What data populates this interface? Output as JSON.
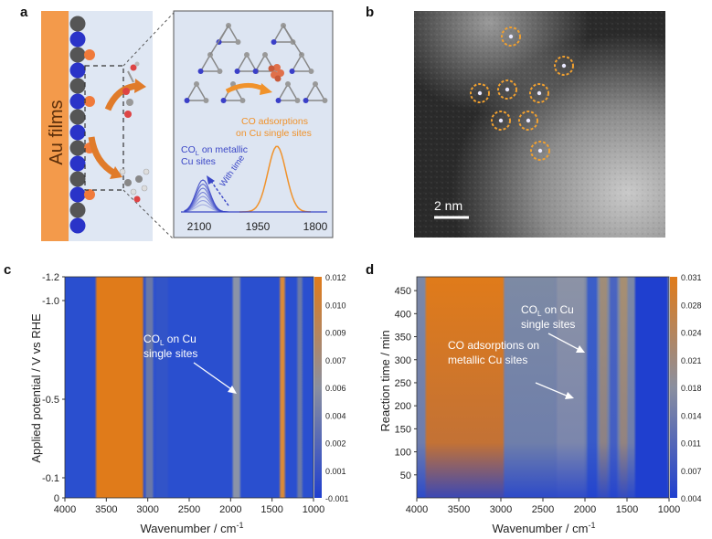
{
  "panel_a": {
    "letter": "a",
    "film_label": "Au films",
    "spectrum": {
      "co_l_label_line1": "CO",
      "co_l_sub": "L",
      "co_l_label_rest": " on metallic",
      "co_l_label_line2": "Cu sites",
      "with_time": "With time",
      "co_ads_line1": "CO adsorptions",
      "co_ads_line2": "on Cu single sites",
      "x_ticks": [
        "2100",
        "1950",
        "1800"
      ]
    }
  },
  "panel_b": {
    "letter": "b",
    "scale_bar": "2 nm"
  },
  "panel_c": {
    "letter": "c",
    "ylabel": "Applied potential / V vs RHE",
    "xlabel_main": "Wavenumber / cm",
    "xlabel_sup": "-1",
    "y_ticks": [
      "-1.2",
      "-1.0",
      "-0.5",
      "-0.1",
      "0"
    ],
    "x_ticks": [
      "4000",
      "3500",
      "3000",
      "2500",
      "2000",
      "1500",
      "1000"
    ],
    "colorbar_ticks": [
      "0.012",
      "0.010",
      "0.009",
      "0.007",
      "0.006",
      "0.004",
      "0.002",
      "0.001",
      "-0.001"
    ],
    "annotation_co": "CO",
    "annotation_sub": "L",
    "annotation_rest": " on Cu",
    "annotation_line2": "single sites"
  },
  "panel_d": {
    "letter": "d",
    "ylabel": "Reaction time / min",
    "xlabel_main": "Wavenumber / cm",
    "xlabel_sup": "-1",
    "y_ticks": [
      "450",
      "400",
      "350",
      "300",
      "250",
      "200",
      "150",
      "100",
      "50"
    ],
    "x_ticks": [
      "4000",
      "3500",
      "3000",
      "2500",
      "2000",
      "1500",
      "1000"
    ],
    "colorbar_ticks": [
      "0.031",
      "0.028",
      "0.024",
      "0.021",
      "0.018",
      "0.014",
      "0.011",
      "0.007",
      "0.004"
    ],
    "annotation1_co": "CO",
    "annotation1_sub": "L",
    "annotation1_rest": " on Cu",
    "annotation1_line2": "single sites",
    "annotation2_line1": "CO adsorptions on",
    "annotation2_line2": "metallic Cu sites"
  },
  "colors": {
    "heat_high": "#e07b1a",
    "heat_low": "#1f3fcf",
    "gold": "#f39a4b",
    "spectrum_orange": "#f0922b",
    "spectrum_blue": "#3a46c6"
  }
}
